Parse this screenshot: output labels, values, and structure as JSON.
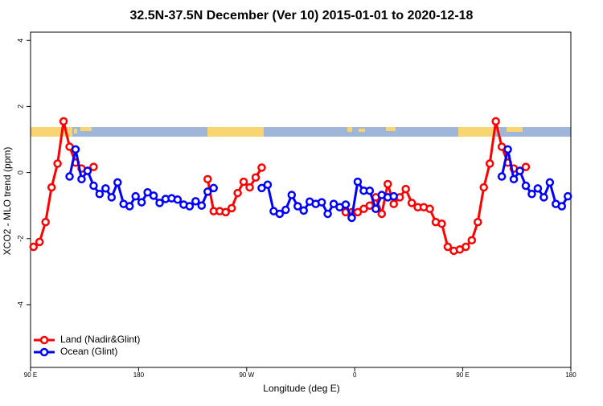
{
  "chart_data": {
    "type": "line",
    "title": "32.5N-37.5N December (Ver 10)   2015-01-01 to 2020-12-18",
    "xlabel": "Longitude (deg E)",
    "ylabel": "XCO2 - MLO trend (ppm)",
    "xlim": [
      90,
      540
    ],
    "ylim": [
      -5.9,
      4.25
    ],
    "xticks": [
      {
        "value": 90,
        "label": "90 E"
      },
      180,
      {
        "value": 270,
        "label": "90 W"
      },
      {
        "value": 360,
        "label": "0"
      },
      {
        "value": 450,
        "label": "90 E"
      },
      {
        "value": 540,
        "label": "180"
      }
    ],
    "yticks": [
      -4,
      -2,
      0,
      2,
      4
    ],
    "legend": "bottom-left",
    "series": [
      {
        "name": "Land (Nadir&Glint)",
        "color": "#ff0000",
        "x": [
          92.5,
          97.5,
          102.5,
          107.5,
          112.5,
          117.5,
          122.5,
          127.5,
          132.5,
          137.5,
          142.5,
          null,
          237.5,
          242.5,
          247.5,
          252.5,
          257.5,
          262.5,
          267.5,
          272.5,
          277.5,
          282.5,
          null,
          352.5,
          357.5,
          362.5,
          367.5,
          372.5,
          377.5,
          382.5,
          387.5,
          392.5,
          397.5,
          402.5,
          407.5,
          412.5,
          417.5,
          422.5,
          427.5,
          432.5,
          437.5,
          442.5,
          447.5,
          452.5,
          457.5,
          462.5,
          467.5,
          472.5,
          477.5,
          482.5,
          487.5,
          492.5,
          497.5,
          502.5
        ],
        "values": [
          -2.25,
          -2.1,
          -1.5,
          -0.45,
          0.27,
          1.55,
          0.78,
          0.3,
          0.12,
          0.05,
          0.17,
          null,
          -0.2,
          -1.17,
          -1.17,
          -1.2,
          -1.08,
          -0.62,
          -0.28,
          -0.45,
          -0.15,
          0.15,
          null,
          -1.2,
          -1.2,
          -1.2,
          -1.1,
          -1.0,
          -0.75,
          -1.25,
          -0.35,
          -0.95,
          -0.75,
          -0.5,
          -0.92,
          -1.05,
          -1.05,
          -1.1,
          -1.5,
          -1.55,
          -2.25,
          -2.37,
          -2.33,
          -2.25,
          -2.05,
          -1.5,
          -0.45,
          0.27,
          1.55,
          0.78,
          0.3,
          0.12,
          0.05,
          0.17
        ]
      },
      {
        "name": "Ocean (Glint)",
        "color": "#0000ff",
        "x": [
          122.5,
          127.5,
          132.5,
          137.5,
          142.5,
          147.5,
          152.5,
          157.5,
          162.5,
          167.5,
          172.5,
          177.5,
          182.5,
          187.5,
          192.5,
          197.5,
          202.5,
          207.5,
          212.5,
          217.5,
          222.5,
          227.5,
          232.5,
          237.5,
          242.5,
          null,
          282.5,
          287.5,
          292.5,
          297.5,
          302.5,
          307.5,
          312.5,
          317.5,
          322.5,
          327.5,
          332.5,
          337.5,
          342.5,
          347.5,
          352.5,
          357.5,
          362.5,
          367.5,
          372.5,
          377.5,
          382.5,
          387.5,
          392.5,
          null,
          482.5,
          487.5,
          492.5,
          497.5,
          502.5,
          507.5,
          512.5,
          517.5,
          522.5,
          527.5,
          532.5,
          537.5
        ],
        "values": [
          -0.12,
          0.7,
          -0.2,
          0.05,
          -0.4,
          -0.65,
          -0.48,
          -0.75,
          -0.3,
          -0.95,
          -1.02,
          -0.72,
          -0.9,
          -0.6,
          -0.7,
          -0.92,
          -0.8,
          -0.78,
          -0.82,
          -0.97,
          -1.02,
          -0.87,
          -1.0,
          -0.58,
          -0.47,
          null,
          -0.47,
          -0.37,
          -1.17,
          -1.25,
          -1.13,
          -0.68,
          -1.02,
          -1.15,
          -0.88,
          -0.95,
          -0.9,
          -1.25,
          -0.95,
          -1.05,
          -0.97,
          -1.37,
          -0.28,
          -0.55,
          -0.55,
          -1.1,
          -0.68,
          -0.75,
          -0.72,
          null,
          -0.12,
          0.7,
          -0.2,
          0.05,
          -0.4,
          -0.65,
          -0.48,
          -0.75,
          -0.3,
          -0.95,
          -1.02,
          -0.72
        ]
      }
    ]
  }
}
